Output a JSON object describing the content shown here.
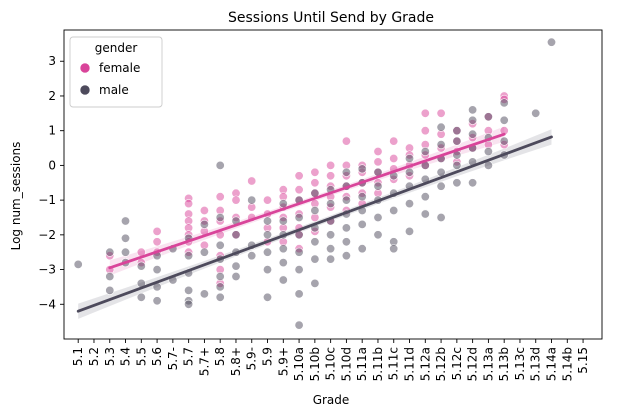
{
  "chart_data": {
    "type": "scatter",
    "title": "Sessions Until Send by Grade",
    "xlabel": "Grade",
    "ylabel": "Log num_sessions",
    "categories": [
      "5.1",
      "5.2",
      "5.3",
      "5.4",
      "5.5",
      "5.6",
      "5.7-",
      "5.7",
      "5.7+",
      "5.8",
      "5.8+",
      "5.9-",
      "5.9",
      "5.9+",
      "5.10a",
      "5.10b",
      "5.10c",
      "5.10d",
      "5.11a",
      "5.11b",
      "5.11c",
      "5.11d",
      "5.12a",
      "5.12b",
      "5.12c",
      "5.12d",
      "5.13a",
      "5.13b",
      "5.13c",
      "5.13d",
      "5.14a",
      "5.14b",
      "5.15"
    ],
    "yticks": [
      -4,
      -3,
      -2,
      -1,
      0,
      1,
      2,
      3
    ],
    "ylim": [
      -5.0,
      3.9
    ],
    "xlim": [
      -0.9,
      33.2
    ],
    "legend": {
      "title": "gender",
      "placement": "top-left",
      "entries": [
        {
          "label": "female",
          "color": "#d9449a"
        },
        {
          "label": "male",
          "color": "#4d4a5c"
        }
      ]
    },
    "series": [
      {
        "name": "female",
        "color": "#d9449a",
        "trend": {
          "x0": 2,
          "y0": -2.95,
          "x1": 27,
          "y1": 0.9
        },
        "points": [
          [
            2,
            -3.0
          ],
          [
            2,
            -2.6
          ],
          [
            4,
            -2.5
          ],
          [
            4,
            -2.8
          ],
          [
            5,
            -2.5
          ],
          [
            5,
            -2.2
          ],
          [
            5,
            -1.9
          ],
          [
            7,
            -0.95
          ],
          [
            7,
            -1.1
          ],
          [
            7,
            -1.4
          ],
          [
            7,
            -1.6
          ],
          [
            7,
            -1.8
          ],
          [
            7,
            -2.0
          ],
          [
            7,
            -2.2
          ],
          [
            7,
            -2.5
          ],
          [
            8,
            -1.3
          ],
          [
            8,
            -1.6
          ],
          [
            8,
            -1.9
          ],
          [
            8,
            -2.3
          ],
          [
            9,
            -0.9
          ],
          [
            9,
            -1.3
          ],
          [
            9,
            -1.6
          ],
          [
            9,
            -2.0
          ],
          [
            9,
            -2.6
          ],
          [
            9,
            -3.0
          ],
          [
            9,
            -3.4
          ],
          [
            10,
            -0.8
          ],
          [
            10,
            -1.0
          ],
          [
            10,
            -1.5
          ],
          [
            10,
            -2.0
          ],
          [
            11,
            -0.45
          ],
          [
            11,
            -1.2
          ],
          [
            11,
            -1.5
          ],
          [
            12,
            -1.0
          ],
          [
            12,
            -1.4
          ],
          [
            12,
            -1.8
          ],
          [
            12,
            -2.2
          ],
          [
            13,
            -0.7
          ],
          [
            13,
            -0.9
          ],
          [
            13,
            -1.2
          ],
          [
            13,
            -1.5
          ],
          [
            13,
            -1.8
          ],
          [
            13,
            -2.2
          ],
          [
            14,
            -0.3
          ],
          [
            14,
            -0.7
          ],
          [
            14,
            -1.0
          ],
          [
            14,
            -1.4
          ],
          [
            14,
            -1.8
          ],
          [
            14,
            -2.0
          ],
          [
            14,
            -2.4
          ],
          [
            15,
            -0.2
          ],
          [
            15,
            -0.5
          ],
          [
            15,
            -0.8
          ],
          [
            15,
            -1.1
          ],
          [
            15,
            -1.5
          ],
          [
            15,
            -1.9
          ],
          [
            16,
            0.0
          ],
          [
            16,
            -0.3
          ],
          [
            16,
            -0.6
          ],
          [
            16,
            -0.9
          ],
          [
            16,
            -1.2
          ],
          [
            16,
            -1.6
          ],
          [
            17,
            0.7
          ],
          [
            17,
            0.0
          ],
          [
            17,
            -0.3
          ],
          [
            17,
            -0.6
          ],
          [
            17,
            -0.9
          ],
          [
            17,
            -1.3
          ],
          [
            18,
            0.0
          ],
          [
            18,
            -0.2
          ],
          [
            18,
            -0.5
          ],
          [
            18,
            -0.8
          ],
          [
            18,
            -1.1
          ],
          [
            19,
            0.4
          ],
          [
            19,
            0.1
          ],
          [
            19,
            -0.2
          ],
          [
            19,
            -0.5
          ],
          [
            19,
            -0.8
          ],
          [
            20,
            0.7
          ],
          [
            20,
            0.2
          ],
          [
            20,
            -0.1
          ],
          [
            20,
            -0.4
          ],
          [
            21,
            0.5
          ],
          [
            21,
            0.3
          ],
          [
            21,
            0.0
          ],
          [
            21,
            -0.3
          ],
          [
            22,
            1.5
          ],
          [
            22,
            1.0
          ],
          [
            22,
            0.6
          ],
          [
            22,
            0.3
          ],
          [
            22,
            0.0
          ],
          [
            23,
            1.5
          ],
          [
            23,
            0.9
          ],
          [
            23,
            0.5
          ],
          [
            23,
            0.2
          ],
          [
            24,
            1.0
          ],
          [
            24,
            0.7
          ],
          [
            24,
            0.4
          ],
          [
            24,
            0.1
          ],
          [
            25,
            1.2
          ],
          [
            25,
            0.8
          ],
          [
            25,
            0.5
          ],
          [
            26,
            1.0
          ],
          [
            26,
            1.4
          ],
          [
            26,
            0.6
          ],
          [
            27,
            2.0
          ],
          [
            27,
            1.9
          ],
          [
            27,
            1.0
          ],
          [
            27,
            0.6
          ]
        ]
      },
      {
        "name": "male",
        "color": "#4d4a5c",
        "trend": {
          "x0": 0,
          "y0": -4.2,
          "x1": 30,
          "y1": 0.82
        },
        "points": [
          [
            0,
            -2.85
          ],
          [
            2,
            -2.5
          ],
          [
            2,
            -3.2
          ],
          [
            2,
            -3.6
          ],
          [
            3,
            -1.6
          ],
          [
            3,
            -2.1
          ],
          [
            3,
            -2.5
          ],
          [
            3,
            -2.8
          ],
          [
            4,
            -2.9
          ],
          [
            4,
            -3.4
          ],
          [
            4,
            -3.8
          ],
          [
            5,
            -2.6
          ],
          [
            5,
            -3.0
          ],
          [
            5,
            -3.5
          ],
          [
            5,
            -3.9
          ],
          [
            6,
            -2.4
          ],
          [
            6,
            -3.3
          ],
          [
            7,
            -2.1
          ],
          [
            7,
            -2.6
          ],
          [
            7,
            -3.1
          ],
          [
            7,
            -3.6
          ],
          [
            7,
            -3.9
          ],
          [
            7,
            -4.0
          ],
          [
            8,
            -1.7
          ],
          [
            8,
            -2.5
          ],
          [
            8,
            -3.7
          ],
          [
            9,
            0.0
          ],
          [
            9,
            -1.5
          ],
          [
            9,
            -2.3
          ],
          [
            9,
            -2.7
          ],
          [
            9,
            -3.2
          ],
          [
            9,
            -3.5
          ],
          [
            9,
            -3.8
          ],
          [
            10,
            -1.6
          ],
          [
            10,
            -2.0
          ],
          [
            10,
            -2.5
          ],
          [
            10,
            -2.9
          ],
          [
            10,
            -3.2
          ],
          [
            11,
            -1.0
          ],
          [
            11,
            -2.3
          ],
          [
            11,
            -2.6
          ],
          [
            12,
            -1.6
          ],
          [
            12,
            -2.0
          ],
          [
            12,
            -2.5
          ],
          [
            12,
            -3.0
          ],
          [
            12,
            -3.8
          ],
          [
            13,
            -1.1
          ],
          [
            13,
            -1.6
          ],
          [
            13,
            -2.0
          ],
          [
            13,
            -2.4
          ],
          [
            13,
            -2.8
          ],
          [
            13,
            -3.3
          ],
          [
            14,
            -1.0
          ],
          [
            14,
            -1.5
          ],
          [
            14,
            -2.0
          ],
          [
            14,
            -2.5
          ],
          [
            14,
            -3.0
          ],
          [
            14,
            -3.7
          ],
          [
            14,
            -4.6
          ],
          [
            15,
            -0.8
          ],
          [
            15,
            -1.3
          ],
          [
            15,
            -1.8
          ],
          [
            15,
            -2.2
          ],
          [
            15,
            -2.7
          ],
          [
            15,
            -3.4
          ],
          [
            16,
            -0.7
          ],
          [
            16,
            -1.1
          ],
          [
            16,
            -1.6
          ],
          [
            16,
            -2.0
          ],
          [
            16,
            -2.4
          ],
          [
            16,
            -2.7
          ],
          [
            17,
            -0.2
          ],
          [
            17,
            -0.6
          ],
          [
            17,
            -1.0
          ],
          [
            17,
            -1.4
          ],
          [
            17,
            -1.8
          ],
          [
            17,
            -2.2
          ],
          [
            17,
            -2.6
          ],
          [
            18,
            -0.1
          ],
          [
            18,
            -0.5
          ],
          [
            18,
            -0.9
          ],
          [
            18,
            -1.3
          ],
          [
            18,
            -1.7
          ],
          [
            18,
            -2.4
          ],
          [
            19,
            -0.2
          ],
          [
            19,
            -0.6
          ],
          [
            19,
            -1.0
          ],
          [
            19,
            -1.5
          ],
          [
            19,
            -2.0
          ],
          [
            20,
            -0.3
          ],
          [
            20,
            -0.8
          ],
          [
            20,
            -1.3
          ],
          [
            20,
            -2.2
          ],
          [
            20,
            -2.4
          ],
          [
            21,
            0.2
          ],
          [
            21,
            -0.2
          ],
          [
            21,
            -0.6
          ],
          [
            21,
            -1.1
          ],
          [
            21,
            -1.9
          ],
          [
            22,
            0.4
          ],
          [
            22,
            0.0
          ],
          [
            22,
            -0.4
          ],
          [
            22,
            -0.9
          ],
          [
            22,
            -1.4
          ],
          [
            23,
            1.1
          ],
          [
            23,
            0.6
          ],
          [
            23,
            0.2
          ],
          [
            23,
            -0.2
          ],
          [
            23,
            -0.6
          ],
          [
            23,
            -1.5
          ],
          [
            24,
            1.0
          ],
          [
            24,
            0.7
          ],
          [
            24,
            0.3
          ],
          [
            24,
            0.0
          ],
          [
            24,
            -0.5
          ],
          [
            25,
            1.6
          ],
          [
            25,
            1.3
          ],
          [
            25,
            0.9
          ],
          [
            25,
            0.5
          ],
          [
            25,
            0.1
          ],
          [
            25,
            -0.5
          ],
          [
            26,
            1.4
          ],
          [
            26,
            0.8
          ],
          [
            26,
            0.4
          ],
          [
            26,
            0.0
          ],
          [
            27,
            1.8
          ],
          [
            27,
            1.3
          ],
          [
            27,
            0.7
          ],
          [
            27,
            0.3
          ],
          [
            29,
            1.5
          ],
          [
            30,
            3.55
          ]
        ]
      }
    ]
  }
}
